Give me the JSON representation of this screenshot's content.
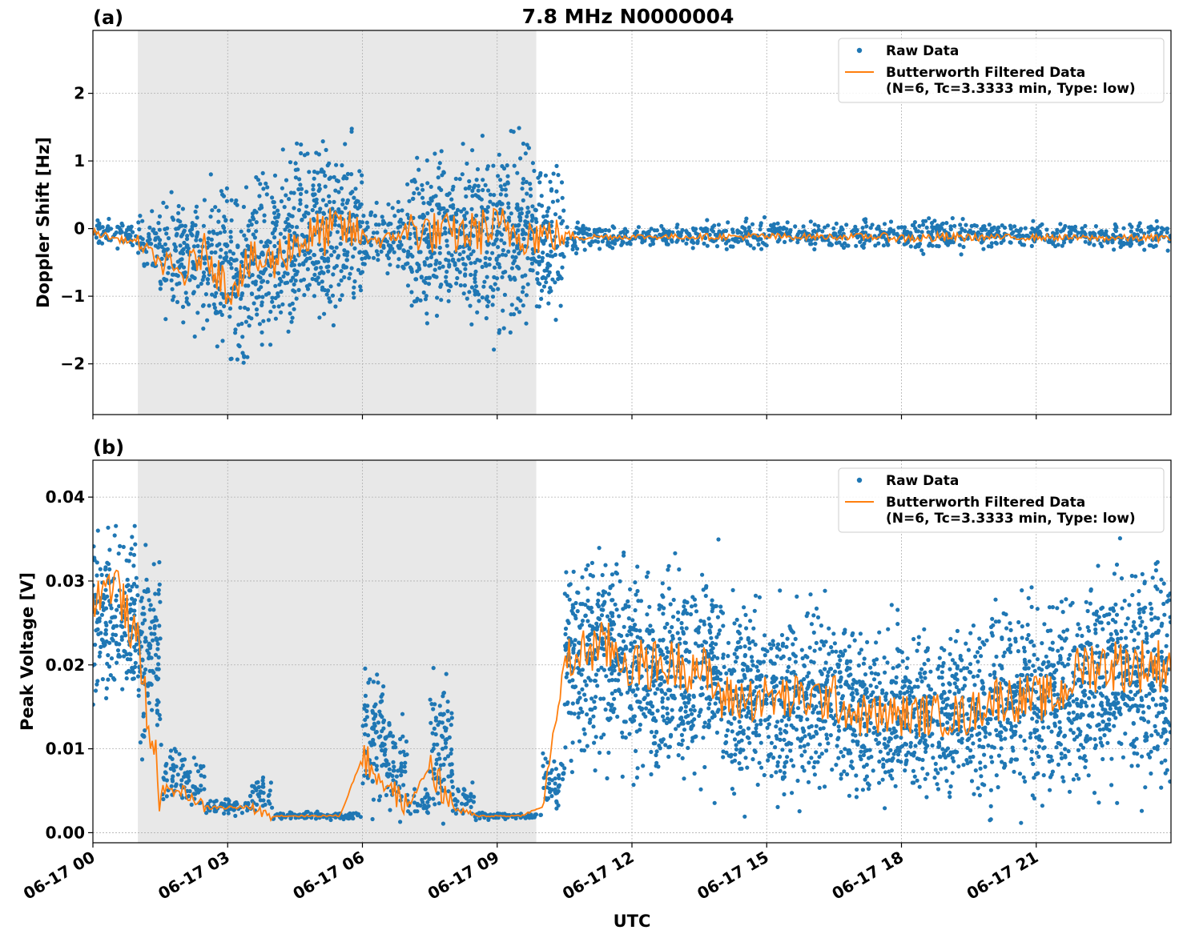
{
  "chart_data": {
    "title": "7.8 MHz N0000004",
    "xlabel": "UTC",
    "x_tick_labels": [
      "06-17 00",
      "06-17 03",
      "06-17 06",
      "06-17 09",
      "06-17 12",
      "06-17 15",
      "06-17 18",
      "06-17 21"
    ],
    "x_range_hours": [
      0,
      24
    ],
    "grid": true,
    "shaded_interval_hours": [
      1.0,
      9.87
    ],
    "colors": {
      "raw": "#1f77b4",
      "filtered": "#ff7f0e",
      "shade": "#e8e8e8"
    },
    "bin_hours_start": [
      0,
      0.5,
      1,
      1.5,
      2,
      2.5,
      3,
      3.5,
      4,
      4.5,
      5,
      5.5,
      6,
      6.5,
      7,
      7.5,
      8,
      8.5,
      9,
      9.5,
      10,
      10.5,
      11,
      11.5,
      12,
      12.5,
      13,
      13.5,
      14,
      14.5,
      15,
      15.5,
      16,
      16.5,
      17,
      17.5,
      18,
      18.5,
      19,
      19.5,
      20,
      20.5,
      21,
      21.5,
      22,
      22.5,
      23,
      23.5
    ],
    "panels": [
      {
        "type": "scatter+line",
        "panel_label": "(a)",
        "ylabel": "Doppler Shift [Hz]",
        "ylim": [
          -2.75,
          2.93
        ],
        "y_ticks": [
          -2,
          -1,
          0,
          1,
          2
        ],
        "y_tick_labels": [
          "−2",
          "−1",
          "0",
          "1",
          "2"
        ],
        "legend": {
          "placement": "top-right",
          "entries": [
            "Raw Data",
            "Butterworth Filtered Data",
            "(N=6, Tc=3.3333 min, Type: low)"
          ]
        },
        "raw_low": [
          -0.3,
          -0.3,
          -0.6,
          -1.3,
          -1.5,
          -1.6,
          -2.0,
          -1.8,
          -1.8,
          -1.6,
          -1.6,
          -1.4,
          -0.6,
          -0.7,
          -1.5,
          -1.5,
          -1.4,
          -1.6,
          -1.6,
          -1.5,
          -1.2,
          -0.4,
          -0.3,
          -0.3,
          -0.3,
          -0.3,
          -0.3,
          -0.3,
          -0.3,
          -0.35,
          -0.3,
          -0.3,
          -0.3,
          -0.3,
          -0.3,
          -0.35,
          -0.4,
          -0.4,
          -0.35,
          -0.3,
          -0.3,
          -0.3,
          -0.3,
          -0.3,
          -0.3,
          -0.3,
          -0.35,
          -0.35
        ],
        "raw_high": [
          0.15,
          0.1,
          0.3,
          0.5,
          0.6,
          0.8,
          0.6,
          0.8,
          1.0,
          1.3,
          1.4,
          1.3,
          0.4,
          0.4,
          1.3,
          1.2,
          1.2,
          1.4,
          1.4,
          1.3,
          1.0,
          0.2,
          0.05,
          0.05,
          0.05,
          0.05,
          0.05,
          0.1,
          0.1,
          0.15,
          0.15,
          0.1,
          0.1,
          0.1,
          0.15,
          0.15,
          0.2,
          0.25,
          0.2,
          0.15,
          0.1,
          0.1,
          0.1,
          0.1,
          0.1,
          0.1,
          0.1,
          0.1
        ],
        "filtered": [
          -0.05,
          -0.15,
          -0.2,
          -0.5,
          -0.7,
          -0.3,
          -0.9,
          -0.5,
          -0.5,
          -0.2,
          -0.1,
          0.0,
          -0.1,
          -0.2,
          0.0,
          -0.05,
          -0.1,
          -0.05,
          0.0,
          -0.05,
          -0.1,
          -0.1,
          -0.12,
          -0.12,
          -0.12,
          -0.12,
          -0.12,
          -0.12,
          -0.12,
          -0.12,
          -0.12,
          -0.12,
          -0.12,
          -0.12,
          -0.12,
          -0.12,
          -0.14,
          -0.14,
          -0.13,
          -0.13,
          -0.13,
          -0.13,
          -0.13,
          -0.13,
          -0.14,
          -0.14,
          -0.14,
          -0.14
        ]
      },
      {
        "type": "scatter+line",
        "panel_label": "(b)",
        "ylabel": "Peak Voltage [V]",
        "ylim": [
          -0.0012,
          0.0444
        ],
        "y_ticks": [
          0,
          0.01,
          0.02,
          0.03,
          0.04
        ],
        "y_tick_labels": [
          "0.00",
          "0.01",
          "0.02",
          "0.03",
          "0.04"
        ],
        "legend": {
          "placement": "top-right",
          "entries": [
            "Raw Data",
            "Butterworth Filtered Data",
            "(N=6, Tc=3.3333 min, Type: low)"
          ]
        },
        "raw_low": [
          0.015,
          0.015,
          0.008,
          0.004,
          0.003,
          0.002,
          0.002,
          0.002,
          0.0015,
          0.0015,
          0.0015,
          0.0015,
          0.003,
          0.002,
          0.002,
          0.002,
          0.002,
          0.0015,
          0.0015,
          0.0015,
          0.002,
          0.008,
          0.008,
          0.008,
          0.006,
          0.006,
          0.006,
          0.006,
          0.004,
          0.004,
          0.004,
          0.004,
          0.004,
          0.004,
          0.003,
          0.003,
          0.003,
          0.003,
          0.003,
          0.003,
          0.004,
          0.004,
          0.004,
          0.004,
          0.005,
          0.005,
          0.005,
          0.005
        ],
        "raw_high": [
          0.037,
          0.038,
          0.035,
          0.01,
          0.009,
          0.004,
          0.004,
          0.007,
          0.0025,
          0.0025,
          0.0025,
          0.0025,
          0.02,
          0.015,
          0.005,
          0.02,
          0.006,
          0.0025,
          0.0025,
          0.0025,
          0.01,
          0.033,
          0.035,
          0.035,
          0.032,
          0.032,
          0.032,
          0.032,
          0.028,
          0.028,
          0.028,
          0.028,
          0.028,
          0.028,
          0.025,
          0.025,
          0.025,
          0.025,
          0.025,
          0.025,
          0.028,
          0.028,
          0.028,
          0.028,
          0.033,
          0.033,
          0.033,
          0.033
        ],
        "filtered": [
          0.028,
          0.03,
          0.022,
          0.005,
          0.005,
          0.003,
          0.003,
          0.003,
          0.002,
          0.002,
          0.002,
          0.002,
          0.009,
          0.006,
          0.003,
          0.008,
          0.003,
          0.002,
          0.002,
          0.002,
          0.003,
          0.02,
          0.022,
          0.022,
          0.02,
          0.02,
          0.02,
          0.02,
          0.016,
          0.016,
          0.016,
          0.016,
          0.016,
          0.016,
          0.014,
          0.014,
          0.014,
          0.014,
          0.014,
          0.014,
          0.016,
          0.016,
          0.016,
          0.016,
          0.02,
          0.02,
          0.02,
          0.02
        ]
      }
    ]
  }
}
